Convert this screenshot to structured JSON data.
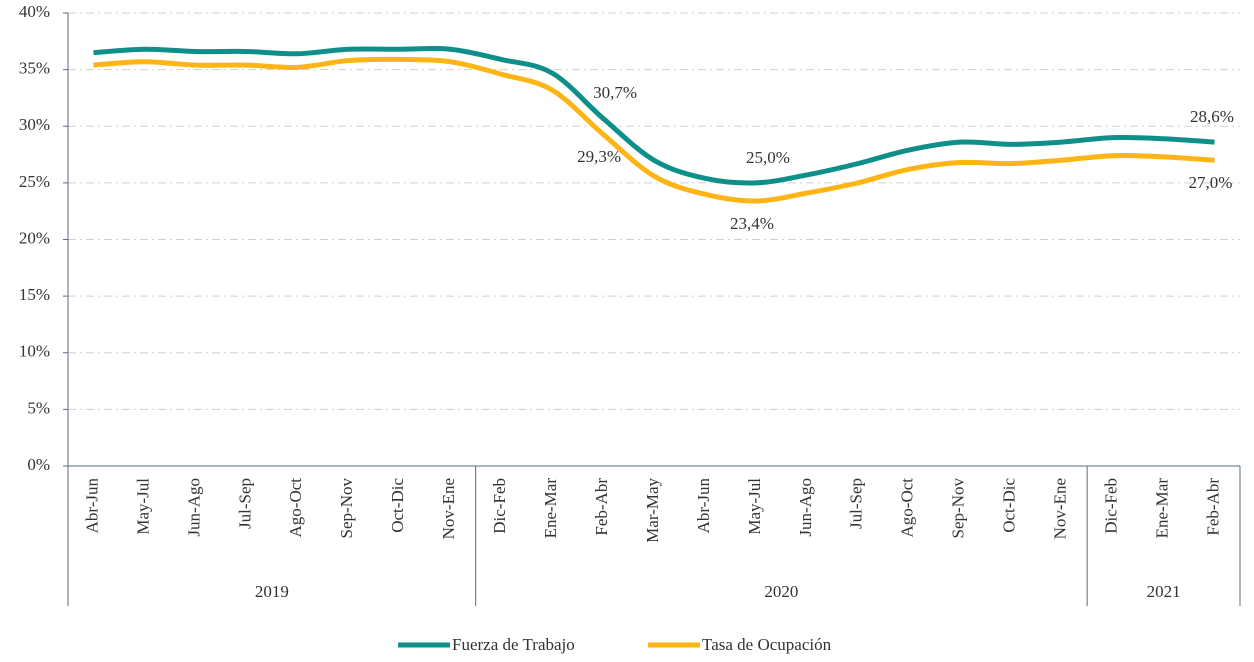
{
  "chart_data": {
    "type": "line",
    "categories": [
      "Abr-Jun",
      "May-Jul",
      "Jun-Ago",
      "Jul-Sep",
      "Ago-Oct",
      "Sep-Nov",
      "Oct-Dic",
      "Nov-Ene",
      "Dic-Feb",
      "Ene-Mar",
      "Feb-Abr",
      "Mar-May",
      "Abr-Jun",
      "May-Jul",
      "Jun-Ago",
      "Jul-Sep",
      "Ago-Oct",
      "Sep-Nov",
      "Oct-Dic",
      "Nov-Ene",
      "Dic-Feb",
      "Ene-Mar",
      "Feb-Abr"
    ],
    "groups": [
      {
        "label": "2019",
        "count": 8
      },
      {
        "label": "2020",
        "count": 12
      },
      {
        "label": "2021",
        "count": 3
      }
    ],
    "series": [
      {
        "name": "Fuerza de Trabajo",
        "color": "#0e8f8a",
        "values": [
          36.5,
          36.8,
          36.6,
          36.6,
          36.4,
          36.8,
          36.8,
          36.8,
          35.9,
          34.7,
          30.7,
          27.0,
          25.4,
          25.0,
          25.7,
          26.7,
          27.9,
          28.6,
          28.4,
          28.6,
          29.0,
          28.9,
          28.6
        ],
        "value_labels": [
          null,
          null,
          null,
          null,
          null,
          null,
          null,
          null,
          null,
          null,
          "30,7%",
          null,
          null,
          "25,0%",
          null,
          null,
          null,
          null,
          null,
          null,
          null,
          null,
          "28,6%"
        ]
      },
      {
        "name": "Tasa de Ocupación",
        "color": "#fdb515",
        "values": [
          35.4,
          35.7,
          35.4,
          35.4,
          35.2,
          35.8,
          35.9,
          35.7,
          34.6,
          33.2,
          29.3,
          25.6,
          24.0,
          23.4,
          24.1,
          25.0,
          26.2,
          26.8,
          26.7,
          27.0,
          27.4,
          27.3,
          27.0
        ],
        "value_labels": [
          null,
          null,
          null,
          null,
          null,
          null,
          null,
          null,
          null,
          null,
          "29,3%",
          null,
          null,
          "23,4%",
          null,
          null,
          null,
          null,
          null,
          null,
          null,
          null,
          "27,0%"
        ]
      }
    ],
    "ylim": [
      0,
      40
    ],
    "yticks": [
      {
        "value": 0,
        "label": "0%"
      },
      {
        "value": 5,
        "label": "5%"
      },
      {
        "value": 10,
        "label": "10%"
      },
      {
        "value": 15,
        "label": "15%"
      },
      {
        "value": 20,
        "label": "20%"
      },
      {
        "value": 25,
        "label": "25%"
      },
      {
        "value": 30,
        "label": "30%"
      },
      {
        "value": 35,
        "label": "35%"
      },
      {
        "value": 40,
        "label": "40%"
      }
    ],
    "grid": true,
    "legend": "bottom"
  }
}
